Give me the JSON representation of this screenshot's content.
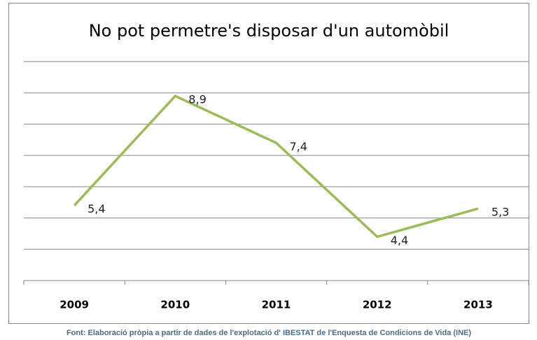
{
  "chart_data": {
    "type": "line",
    "title": "No pot permetre's disposar d'un automòbil",
    "categories": [
      "2009",
      "2010",
      "2011",
      "2012",
      "2013"
    ],
    "series": [
      {
        "name": "No pot permetre's disposar d'un automòbil",
        "color": "#9bbb59",
        "values": [
          5.4,
          8.9,
          7.4,
          4.4,
          5.3
        ],
        "value_labels": [
          "5,4",
          "8,9",
          "7,4",
          "4,4",
          "5,3"
        ]
      }
    ],
    "ylim": [
      3,
      10
    ],
    "yticks": [
      3,
      4,
      5,
      6,
      7,
      8,
      9,
      10
    ],
    "grid": true,
    "source": "Font: Elaboració pròpia a partir de dades de l'explotació d' IBESTAT de l'Enquesta de Condicions de Vida (INE)"
  }
}
